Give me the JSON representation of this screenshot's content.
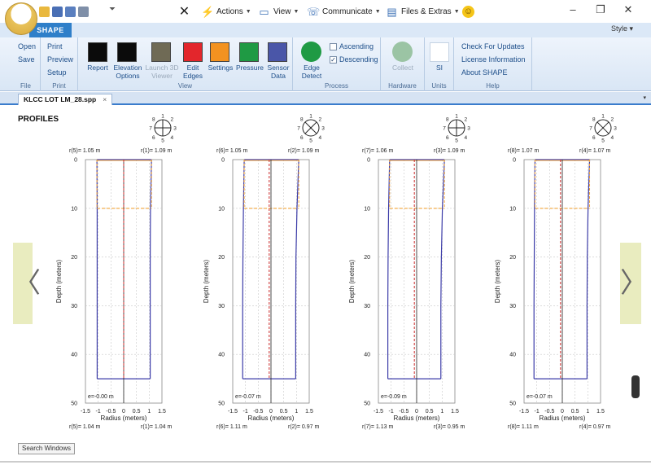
{
  "window": {
    "qat_more": "⏷",
    "menus": [
      {
        "id": "close",
        "label": "",
        "icon": "close-icon",
        "glyph": "✕"
      },
      {
        "id": "actions",
        "label": "Actions",
        "icon": "lightning-icon",
        "glyph": "⚡"
      },
      {
        "id": "view",
        "label": "View",
        "icon": "monitor-icon",
        "glyph": "🖥"
      },
      {
        "id": "communicate",
        "label": "Communicate",
        "icon": "phone-icon",
        "glyph": "☏"
      },
      {
        "id": "files",
        "label": "Files & Extras",
        "icon": "files-icon",
        "glyph": "🗎"
      },
      {
        "id": "smiley",
        "label": "",
        "icon": "smiley-icon",
        "glyph": "☺"
      }
    ],
    "minimize": "–",
    "maximize": "❐",
    "close": "✕"
  },
  "ribbon": {
    "tab": "SHAPE",
    "style_menu": "Style ▾",
    "file": {
      "label": "File",
      "items": [
        "Open",
        "Save"
      ]
    },
    "print": {
      "label": "Print",
      "items": [
        "Print",
        "Preview",
        "Setup"
      ]
    },
    "view": {
      "label": "View",
      "buttons": [
        {
          "label": "Report",
          "color": "#0b0b0b",
          "enabled": true
        },
        {
          "label": "Elevation Options",
          "color": "#0b0b0b",
          "enabled": true
        },
        {
          "label": "Launch 3D Viewer",
          "color": "#6f6a55",
          "enabled": false
        },
        {
          "label": "Edit Edges",
          "color": "#e3262c",
          "enabled": true
        },
        {
          "label": "Settings",
          "color": "#f39220",
          "enabled": true
        },
        {
          "label": "Pressure",
          "color": "#1f9a44",
          "enabled": true
        },
        {
          "label": "Sensor Data",
          "color": "#4a56a8",
          "enabled": true
        }
      ]
    },
    "process": {
      "label": "Process",
      "edge_detect": "Edge Detect",
      "edge_color": "#1f9a44",
      "ascending": "Ascending",
      "descending": "Descending",
      "ascending_checked": false,
      "descending_checked": true
    },
    "hardware": {
      "label": "Hardware",
      "collect": "Collect",
      "collect_color": "#9bc4a4"
    },
    "units": {
      "label": "Units",
      "value": "SI"
    },
    "help": {
      "label": "Help",
      "items": [
        "Check For Updates",
        "License Information",
        "About SHAPE"
      ]
    }
  },
  "document": {
    "tab": "KLCC LOT LM_28.spp",
    "tab_close": "×",
    "dropdown": "▾"
  },
  "content": {
    "title": "PROFILES",
    "search_button": "Search Windows",
    "nav_left": "〈",
    "nav_right": "〉"
  },
  "profiles": [
    {
      "top_left": "r(5)= 1.05 m",
      "top_right": "r(1)= 1.09 m",
      "bottom_left": "r(5)= 1.04 m",
      "bottom_right": "r(1)= 1.04 m",
      "ecc": "e=-0.00 m",
      "compass": "plus",
      "pair": [
        5,
        1
      ]
    },
    {
      "top_left": "r(6)= 1.05 m",
      "top_right": "r(2)= 1.09 m",
      "bottom_left": "r(6)= 1.11 m",
      "bottom_right": "r(2)= 0.97 m",
      "ecc": "e=-0.07 m",
      "compass": "x",
      "pair": [
        6,
        2
      ]
    },
    {
      "top_left": "r(7)= 1.06 m",
      "top_right": "r(3)= 1.09 m",
      "bottom_left": "r(7)= 1.13 m",
      "bottom_right": "r(3)= 0.95 m",
      "ecc": "e=-0.09 m",
      "compass": "plus",
      "pair": [
        7,
        3
      ]
    },
    {
      "top_left": "r(8)= 1.07 m",
      "top_right": "r(4)= 1.07 m",
      "bottom_left": "r(8)= 1.11 m",
      "bottom_right": "r(4)= 0.97 m",
      "ecc": "e=-0.07 m",
      "compass": "x",
      "pair": [
        8,
        4
      ]
    }
  ],
  "chart_data": [
    {
      "type": "line",
      "xlabel": "Radius (meters)",
      "ylabel": "Depth (meters)",
      "xlim": [
        -1.5,
        1.5
      ],
      "ylim": [
        0,
        50
      ],
      "xticks": [
        -1.5,
        -1,
        -0.5,
        0,
        0.5,
        1,
        1.5
      ],
      "yticks": [
        0,
        10,
        20,
        30,
        40,
        50
      ],
      "grid": true,
      "inverted_y": true,
      "series": [
        {
          "color": "#3c3ca8",
          "depth": [
            0,
            10,
            20,
            30,
            40,
            45
          ],
          "left": [
            -1.05,
            -1.04,
            -1.04,
            -1.04,
            -1.04,
            -1.04
          ],
          "right": [
            1.09,
            1.05,
            1.04,
            1.04,
            1.04,
            1.04
          ]
        },
        {
          "color": "#f3a53a",
          "depth": [
            0,
            10
          ],
          "left": [
            -1.05,
            -1.05
          ],
          "right": [
            1.09,
            1.09
          ]
        },
        {
          "color": "#cc2b2b",
          "depth": [
            0,
            45
          ],
          "center": [
            -0.0,
            -0.0
          ]
        }
      ]
    },
    {
      "type": "line",
      "xlabel": "Radius (meters)",
      "ylabel": "Depth (meters)",
      "xlim": [
        -1.5,
        1.5
      ],
      "ylim": [
        0,
        50
      ],
      "xticks": [
        -1.5,
        -1,
        -0.5,
        0,
        0.5,
        1,
        1.5
      ],
      "yticks": [
        0,
        10,
        20,
        30,
        40,
        50
      ],
      "grid": true,
      "inverted_y": true,
      "series": [
        {
          "color": "#3c3ca8",
          "depth": [
            0,
            10,
            20,
            30,
            40,
            45
          ],
          "left": [
            -1.05,
            -1.08,
            -1.1,
            -1.11,
            -1.11,
            -1.11
          ],
          "right": [
            1.09,
            1.02,
            0.98,
            0.97,
            0.97,
            0.97
          ]
        },
        {
          "color": "#f3a53a",
          "depth": [
            0,
            10
          ],
          "left": [
            -1.05,
            -1.05
          ],
          "right": [
            1.09,
            1.09
          ]
        },
        {
          "color": "#cc2b2b",
          "depth": [
            0,
            45
          ],
          "center": [
            -0.07,
            -0.07
          ]
        }
      ]
    },
    {
      "type": "line",
      "xlabel": "Radius (meters)",
      "ylabel": "Depth (meters)",
      "xlim": [
        -1.5,
        1.5
      ],
      "ylim": [
        0,
        50
      ],
      "xticks": [
        -1.5,
        -1,
        -0.5,
        0,
        0.5,
        1,
        1.5
      ],
      "yticks": [
        0,
        10,
        20,
        30,
        40,
        50
      ],
      "grid": true,
      "inverted_y": true,
      "series": [
        {
          "color": "#3c3ca8",
          "depth": [
            0,
            10,
            20,
            30,
            40,
            45
          ],
          "left": [
            -1.06,
            -1.1,
            -1.12,
            -1.13,
            -1.13,
            -1.13
          ],
          "right": [
            1.09,
            1.01,
            0.97,
            0.95,
            0.95,
            0.95
          ]
        },
        {
          "color": "#f3a53a",
          "depth": [
            0,
            10
          ],
          "left": [
            -1.06,
            -1.06
          ],
          "right": [
            1.09,
            1.09
          ]
        },
        {
          "color": "#cc2b2b",
          "depth": [
            0,
            45
          ],
          "center": [
            -0.09,
            -0.09
          ]
        }
      ]
    },
    {
      "type": "line",
      "xlabel": "Radius (meters)",
      "ylabel": "Depth (meters)",
      "xlim": [
        -1.5,
        1.5
      ],
      "ylim": [
        0,
        50
      ],
      "xticks": [
        -1.5,
        -1,
        -0.5,
        0,
        0.5,
        1,
        1.5
      ],
      "yticks": [
        0,
        10,
        20,
        30,
        40,
        50
      ],
      "grid": true,
      "inverted_y": true,
      "series": [
        {
          "color": "#3c3ca8",
          "depth": [
            0,
            10,
            20,
            30,
            40,
            45
          ],
          "left": [
            -1.07,
            -1.09,
            -1.1,
            -1.11,
            -1.11,
            -1.11
          ],
          "right": [
            1.07,
            1.01,
            0.98,
            0.97,
            0.97,
            0.97
          ]
        },
        {
          "color": "#f3a53a",
          "depth": [
            0,
            10
          ],
          "left": [
            -1.07,
            -1.07
          ],
          "right": [
            1.07,
            1.07
          ]
        },
        {
          "color": "#cc2b2b",
          "depth": [
            0,
            45
          ],
          "center": [
            -0.07,
            -0.07
          ]
        }
      ]
    }
  ]
}
